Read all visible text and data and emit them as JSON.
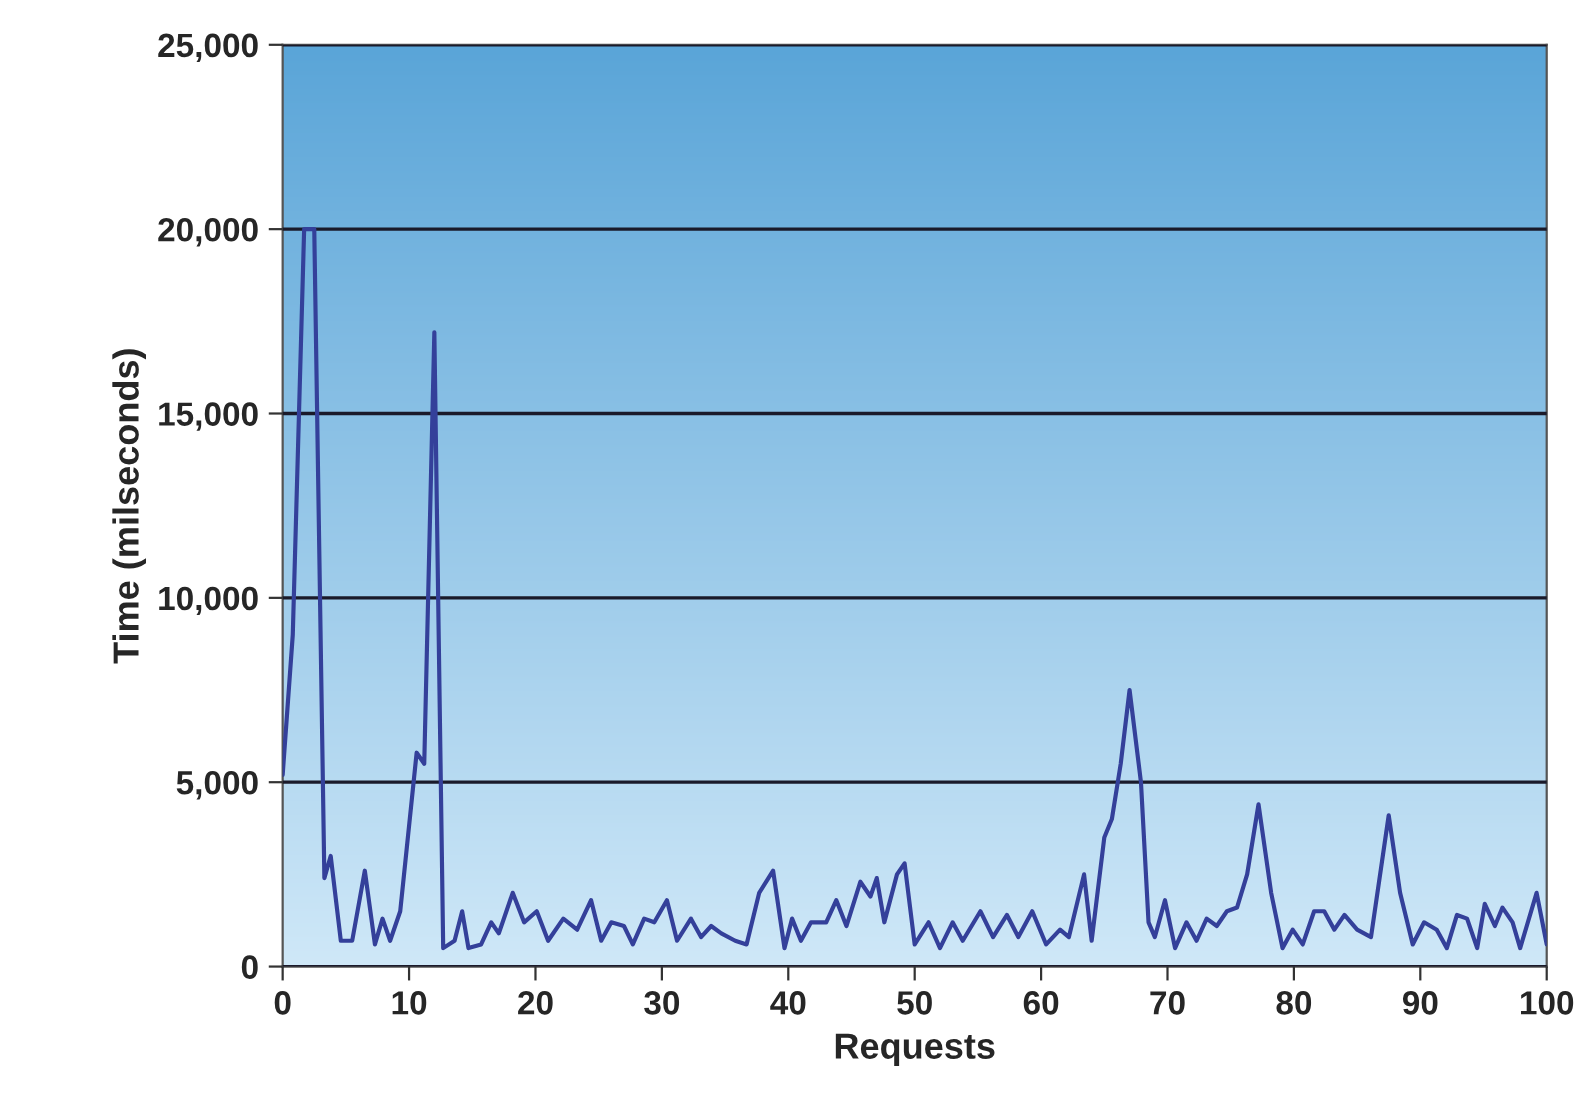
{
  "chart_data": {
    "type": "line",
    "xlabel": "Requests",
    "ylabel": "Time (milseconds)",
    "x": [
      0,
      0.8,
      1.7,
      2.5,
      3.3,
      3.8,
      4.6,
      5.5,
      6.5,
      7.3,
      7.9,
      8.5,
      9.3,
      10.6,
      11.2,
      12,
      12.7,
      13.6,
      14.2,
      14.7,
      15.7,
      16.5,
      17.1,
      18.2,
      19.1,
      20.1,
      21,
      22.2,
      23.3,
      24.4,
      25.2,
      26,
      27,
      27.7,
      28.6,
      29.4,
      30.4,
      31.2,
      32.3,
      33.1,
      33.9,
      34.7,
      35.8,
      36.7,
      37.7,
      38.8,
      39.7,
      40.3,
      41,
      41.8,
      43,
      43.8,
      44.6,
      45.7,
      46.5,
      47,
      47.6,
      48.6,
      49.2,
      50,
      51.1,
      52,
      53,
      53.8,
      55.2,
      56.2,
      57.3,
      58.2,
      59.3,
      60.4,
      61.5,
      62.2,
      63.4,
      64,
      65,
      65.6,
      66.3,
      67,
      67.9,
      68.5,
      69,
      69.8,
      70.6,
      71.5,
      72.3,
      73.1,
      73.9,
      74.7,
      75.5,
      76.3,
      77.2,
      78.2,
      79.1,
      79.9,
      80.7,
      81.6,
      82.4,
      83.2,
      84,
      85,
      86.1,
      87.5,
      88.4,
      89.4,
      90.3,
      91.3,
      92.1,
      92.9,
      93.7,
      94.5,
      95.1,
      95.9,
      96.5,
      97.3,
      97.9,
      99.2,
      100
    ],
    "series": [
      {
        "color": "#34409a",
        "values": [
          5200,
          9000,
          20000,
          20000,
          2400,
          3000,
          700,
          700,
          2600,
          600,
          1300,
          700,
          1500,
          5800,
          5500,
          17200,
          500,
          700,
          1500,
          500,
          600,
          1200,
          900,
          2000,
          1200,
          1500,
          700,
          1300,
          1000,
          1800,
          700,
          1200,
          1100,
          600,
          1300,
          1200,
          1800,
          700,
          1300,
          800,
          1100,
          900,
          700,
          600,
          2000,
          2600,
          500,
          1300,
          700,
          1200,
          1200,
          1800,
          1100,
          2300,
          1900,
          2400,
          1200,
          2500,
          2800,
          600,
          1200,
          500,
          1200,
          700,
          1500,
          800,
          1400,
          800,
          1500,
          600,
          1000,
          800,
          2500,
          700,
          3500,
          4000,
          5500,
          7500,
          5000,
          1200,
          800,
          1800,
          500,
          1200,
          700,
          1300,
          1100,
          1500,
          1600,
          2500,
          4400,
          2000,
          500,
          1000,
          600,
          1500,
          1500,
          1000,
          1400,
          1000,
          800,
          4100,
          2000,
          600,
          1200,
          1000,
          500,
          1400,
          1300,
          500,
          1700,
          1100,
          1600,
          1200,
          500,
          2000,
          600
        ]
      }
    ],
    "xlim": [
      0,
      100
    ],
    "xticks": [
      0,
      10,
      20,
      30,
      40,
      50,
      60,
      70,
      80,
      90,
      100
    ],
    "ylim": [
      0,
      25000
    ],
    "yticks": [
      {
        "value": 0,
        "label": "0"
      },
      {
        "value": 5000,
        "label": "5,000"
      },
      {
        "value": 10000,
        "label": "10,000"
      },
      {
        "value": 15000,
        "label": "15,000"
      },
      {
        "value": 20000,
        "label": "20,000"
      },
      {
        "value": 25000,
        "label": "25,000"
      }
    ],
    "grid": "y",
    "legend": false,
    "marker": "none",
    "line_style": "solid"
  }
}
